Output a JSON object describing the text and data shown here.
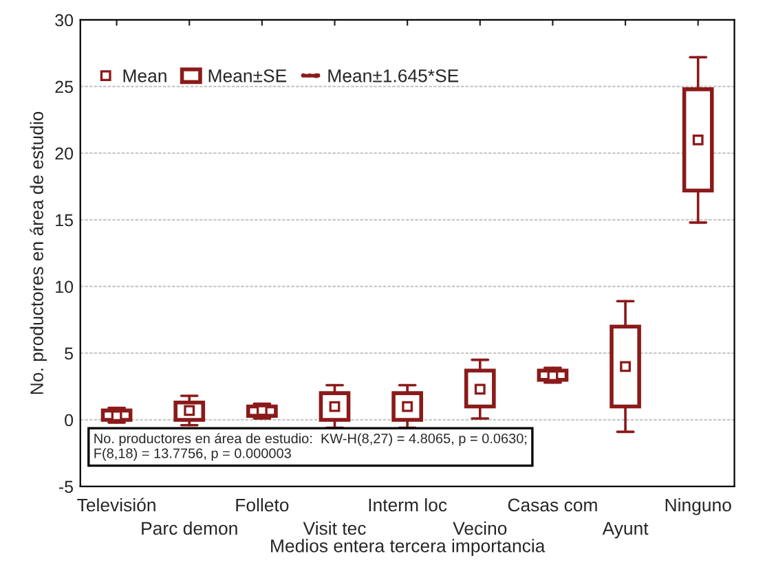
{
  "chart_data": {
    "type": "box",
    "xlabel": "Medios entera tercera importancia",
    "ylabel": "No. productores en área de estudio",
    "categories": [
      "Televisión",
      "Parc demon",
      "Folleto",
      "Visit tec",
      "Interm loc",
      "Vecino",
      "Casas com",
      "Ayunt",
      "Ninguno"
    ],
    "series": [
      {
        "color": "#8b1a1a",
        "boxes": [
          {
            "low": -0.2,
            "q1": 0.0,
            "median": 0.3,
            "q3": 0.7,
            "high": 0.9
          },
          {
            "low": -0.4,
            "q1": 0.0,
            "median": 0.7,
            "q3": 1.3,
            "high": 1.8
          },
          {
            "low": 0.1,
            "q1": 0.3,
            "median": 0.7,
            "q3": 1.0,
            "high": 1.2
          },
          {
            "low": -0.6,
            "q1": 0.0,
            "median": 1.0,
            "q3": 2.0,
            "high": 2.6
          },
          {
            "low": -0.6,
            "q1": 0.0,
            "median": 1.0,
            "q3": 2.0,
            "high": 2.6
          },
          {
            "low": 0.1,
            "q1": 1.0,
            "median": 2.3,
            "q3": 3.7,
            "high": 4.5
          },
          {
            "low": 2.8,
            "q1": 3.0,
            "median": 3.3,
            "q3": 3.7,
            "high": 3.9
          },
          {
            "low": -0.9,
            "q1": 1.0,
            "median": 4.0,
            "q3": 7.0,
            "high": 8.9
          },
          {
            "low": 14.8,
            "q1": 17.2,
            "median": 21.0,
            "q3": 24.8,
            "high": 27.2
          }
        ]
      }
    ],
    "ylim": [
      -5,
      30
    ],
    "yticks": [
      -5,
      0,
      5,
      10,
      15,
      20,
      25,
      30
    ],
    "grid": "y",
    "annotations": [
      "Mean",
      "Mean±SE",
      "Mean±1.645*SE",
      "No. productores en área de estudio:  KW-H(8,27) = 4.8065, p = 0.0630;\nF(8,18) = 13.7756, p = 0.000003"
    ]
  }
}
